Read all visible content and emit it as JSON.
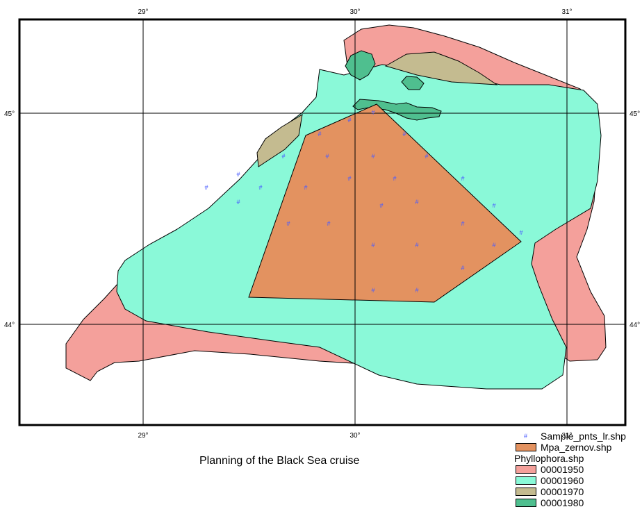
{
  "title": "Planning of the Black Sea cruise",
  "ticks": {
    "lon": [
      "29°",
      "30°",
      "31°"
    ],
    "lat": [
      "45°",
      "44°"
    ]
  },
  "legend": {
    "points_label": "Sample_pnts_lr.shp",
    "mpa_label": "Mpa_zernov.shp",
    "phyllophora_label": "Phyllophora.shp",
    "classes": [
      {
        "label": "00001950",
        "color": "#f4a09b"
      },
      {
        "label": "00001960",
        "color": "#8af9d8"
      },
      {
        "label": "00001970",
        "color": "#c4bb90"
      },
      {
        "label": "00001980",
        "color": "#4fbf8f"
      }
    ]
  },
  "colors": {
    "mpa": "#e39260",
    "points": "#4a5cff"
  },
  "sample_symbol": "#"
}
